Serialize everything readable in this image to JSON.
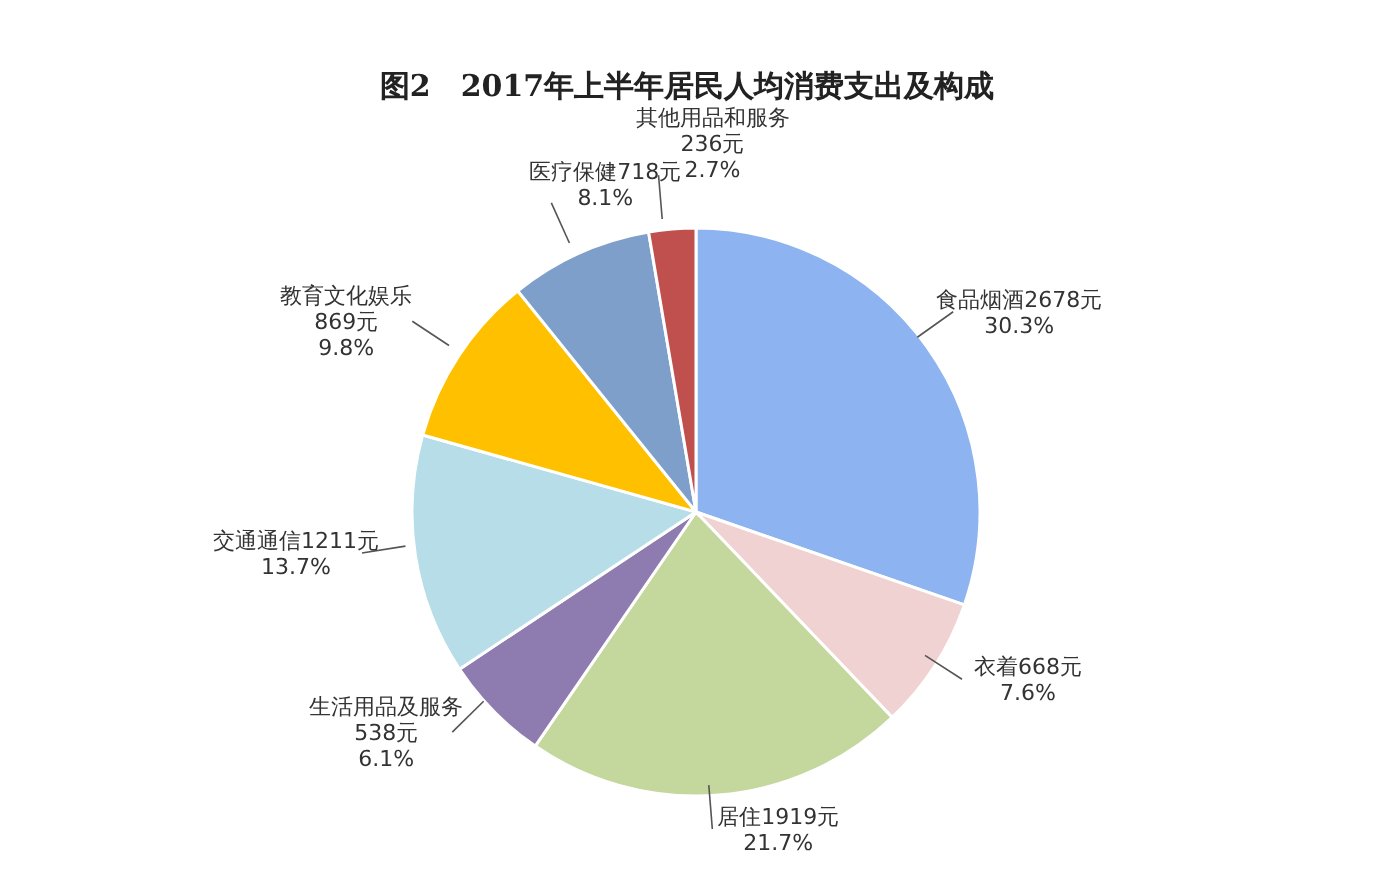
{
  "chart_data": {
    "type": "pie",
    "title": "图2　2017年上半年居民人均消费支出及构成",
    "categories": [
      "食品烟酒",
      "衣着",
      "居住",
      "生活用品及服务",
      "交通通信",
      "教育文化娱乐",
      "医疗保健",
      "其他用品和服务"
    ],
    "values": [
      2678,
      668,
      1919,
      538,
      1211,
      869,
      718,
      236
    ],
    "value_labels": [
      "2678元\n30.3%",
      "668元\n7.6%",
      "1919元\n21.7%",
      "\n538元\n6.1%",
      "1211元\n13.7%",
      "\n869元\n9.8%",
      "718元\n8.1%",
      "\n236元\n2.7%"
    ],
    "colors": [
      "#8db4f0",
      "#f0d2d2",
      "#c4d79c",
      "#8e7cb0",
      "#b7dee8",
      "#ffc000",
      "#7f9fcb",
      "#c0504d"
    ]
  }
}
